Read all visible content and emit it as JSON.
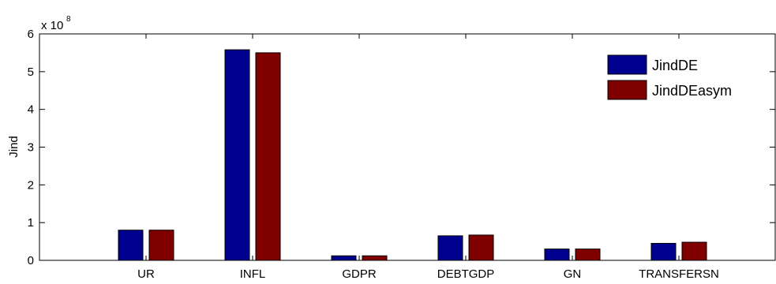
{
  "chart_data": {
    "type": "bar",
    "categories": [
      "UR",
      "INFL",
      "GDPR",
      "DEBTGDP",
      "GN",
      "TRANSFERSN"
    ],
    "series": [
      {
        "name": "JindDE",
        "values": [
          0.8,
          5.58,
          0.12,
          0.65,
          0.3,
          0.45
        ],
        "color": "#00008f"
      },
      {
        "name": "JindDEasym",
        "values": [
          0.8,
          5.5,
          0.12,
          0.67,
          0.3,
          0.48
        ],
        "color": "#800000"
      }
    ],
    "ylabel": "Jind",
    "ylim": [
      0,
      6
    ],
    "yticks": [
      "0",
      "1",
      "2",
      "3",
      "4",
      "5",
      "6"
    ],
    "y_multiplier": "x 10",
    "y_multiplier_exponent": "8",
    "legend_position": "top-right",
    "grid": false
  }
}
